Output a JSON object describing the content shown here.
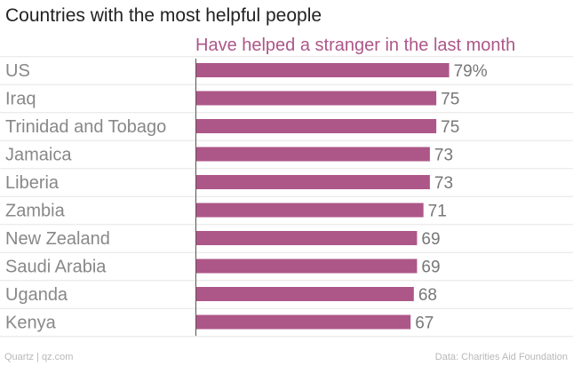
{
  "title": "Countries with the most helpful people",
  "footer": {
    "left": "Quartz | qz.com",
    "right": "Data: Charities Aid Foundation"
  },
  "colors": {
    "bar": "#ad5788",
    "series_label": "#ad5788",
    "category_label": "#888888",
    "value_label": "#777777",
    "gridline": "#e6e6e6",
    "axis": "#555555"
  },
  "chart_data": {
    "type": "bar",
    "orientation": "horizontal",
    "title": "Countries with the most helpful people",
    "categories": [
      "US",
      "Iraq",
      "Trinidad and Tobago",
      "Jamaica",
      "Liberia",
      "Zambia",
      "New Zealand",
      "Saudi Arabia",
      "Uganda",
      "Kenya"
    ],
    "series": [
      {
        "name": "Have helped a stranger in the last month",
        "values": [
          79,
          75,
          75,
          73,
          73,
          71,
          69,
          69,
          68,
          67
        ]
      }
    ],
    "value_labels": [
      "79%",
      "75",
      "75",
      "73",
      "73",
      "71",
      "69",
      "69",
      "68",
      "67"
    ],
    "xlim": [
      0,
      100
    ],
    "grid": true,
    "legend": "top"
  }
}
